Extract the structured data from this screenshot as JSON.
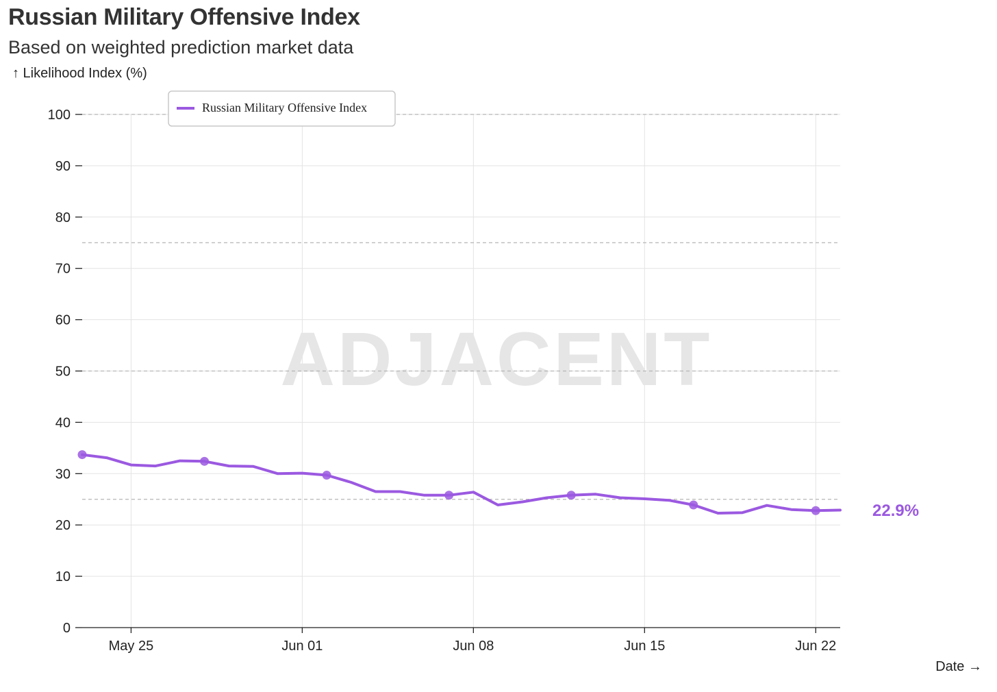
{
  "chart_data": {
    "type": "line",
    "title": "Russian Military Offensive Index",
    "subtitle": "Based on weighted prediction market data",
    "ylabel": "↑ Likelihood Index (%)",
    "xlabel": "Date →",
    "watermark": "ADJACENT",
    "ylim": [
      0,
      100
    ],
    "yticks": [
      0,
      10,
      20,
      30,
      40,
      50,
      60,
      70,
      80,
      90,
      100
    ],
    "ytick_labels": [
      "0",
      "10",
      "20",
      "30",
      "40",
      "50",
      "60",
      "70",
      "80",
      "90",
      "100"
    ],
    "xlim": [
      -2,
      29
    ],
    "xticks": [
      0,
      7,
      14,
      21,
      28
    ],
    "xtick_labels": [
      "May 25",
      "Jun 01",
      "Jun 08",
      "Jun 15",
      "Jun 22"
    ],
    "reference_lines": [
      25,
      50,
      75,
      100
    ],
    "series": [
      {
        "name": "Russian Military Offensive Index",
        "color": "#9b59e0",
        "x": [
          -2,
          -1,
          0,
          1,
          2,
          3,
          4,
          5,
          6,
          7,
          8,
          9,
          10,
          11,
          12,
          13,
          14,
          15,
          16,
          17,
          18,
          19,
          20,
          21,
          22,
          23,
          24,
          25,
          26,
          27,
          28,
          29
        ],
        "values": [
          33.7,
          33.1,
          31.7,
          31.5,
          32.5,
          32.4,
          31.5,
          31.4,
          30.0,
          30.1,
          29.7,
          28.3,
          26.5,
          26.5,
          25.8,
          25.8,
          26.4,
          23.9,
          24.5,
          25.3,
          25.8,
          26.0,
          25.3,
          25.1,
          24.8,
          23.9,
          22.3,
          22.4,
          23.8,
          23.0,
          22.8,
          22.9
        ],
        "markers_at": [
          -2,
          3,
          8,
          13,
          18,
          23,
          28
        ]
      }
    ],
    "last_value_label": "22.9%",
    "legend_location": "top-left"
  }
}
